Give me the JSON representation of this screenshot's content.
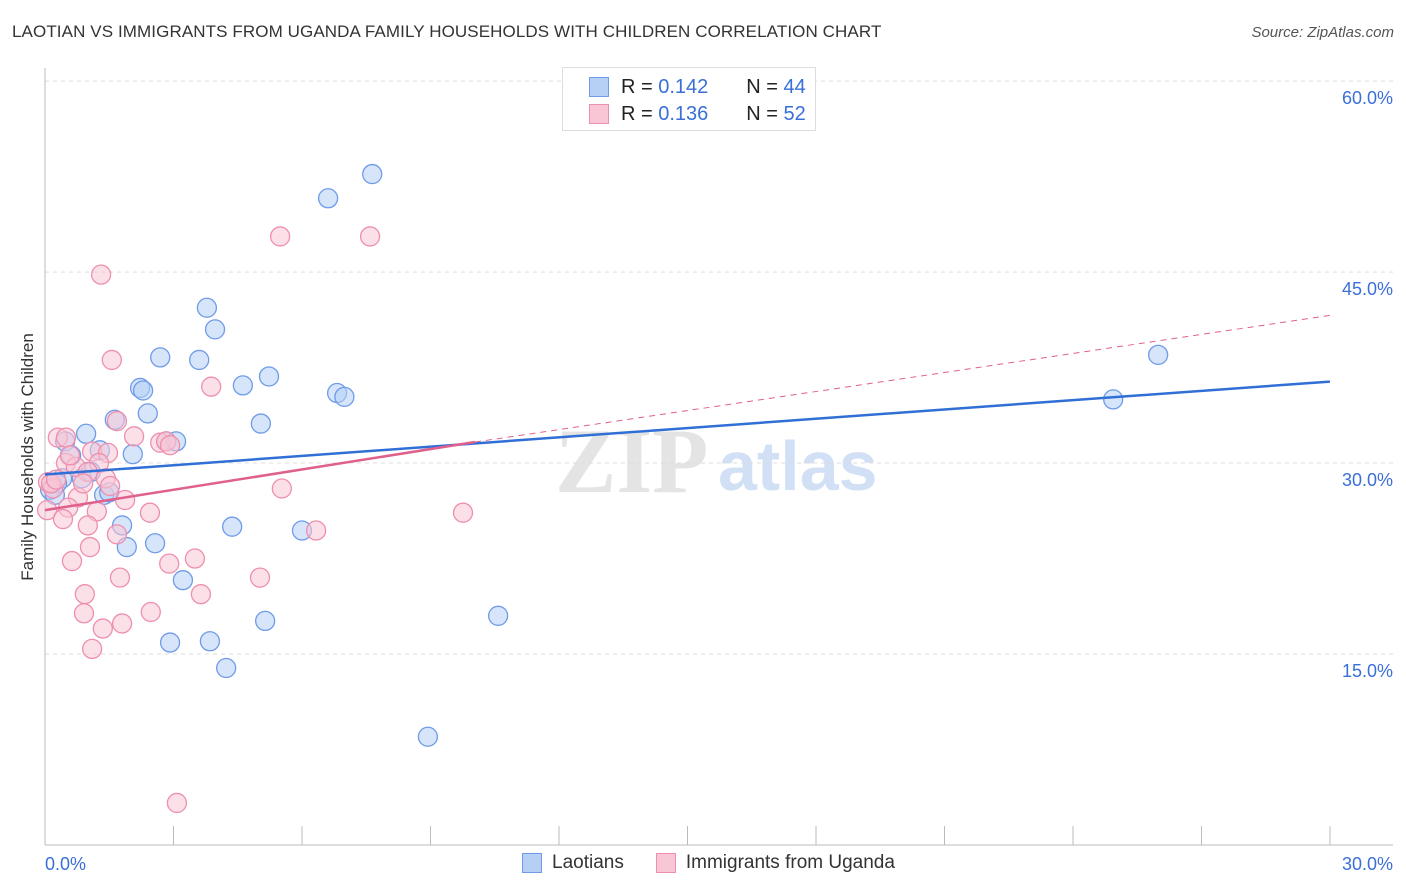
{
  "chart_data": {
    "type": "scatter",
    "title": "LAOTIAN VS IMMIGRANTS FROM UGANDA FAMILY HOUSEHOLDS WITH CHILDREN CORRELATION CHART",
    "source": "Source: ZipAtlas.com",
    "xlabel": "",
    "ylabel": "Family Households with Children",
    "xlim": [
      0,
      30
    ],
    "ylim": [
      0,
      62.5
    ],
    "x_tick_labels": [
      "0.0%",
      "30.0%"
    ],
    "y_ticks": [
      15,
      30,
      45,
      60
    ],
    "y_tick_labels": [
      "15.0%",
      "30.0%",
      "45.0%",
      "60.0%"
    ],
    "grid": true,
    "legend_placement": "top-center",
    "watermark": "ZIPatlas",
    "series": [
      {
        "name": "Laotians",
        "color": "#6f9be8",
        "fill": "#b5cff5",
        "line_color": "#2f6fd6",
        "R": "0.142",
        "N": "44",
        "trend": [
          [
            0,
            29.1
          ],
          [
            30,
            36.4
          ]
        ],
        "points": [
          [
            7.64,
            52.7
          ],
          [
            6.61,
            50.8
          ],
          [
            3.78,
            42.2
          ],
          [
            3.97,
            40.5
          ],
          [
            2.69,
            38.3
          ],
          [
            3.6,
            38.1
          ],
          [
            25.99,
            38.5
          ],
          [
            2.22,
            35.9
          ],
          [
            2.29,
            35.7
          ],
          [
            4.62,
            36.1
          ],
          [
            5.23,
            36.8
          ],
          [
            6.82,
            35.5
          ],
          [
            6.99,
            35.2
          ],
          [
            24.94,
            35.0
          ],
          [
            1.63,
            33.4
          ],
          [
            2.4,
            33.9
          ],
          [
            5.04,
            33.1
          ],
          [
            0.47,
            31.7
          ],
          [
            0.96,
            32.3
          ],
          [
            2.83,
            31.7
          ],
          [
            3.06,
            31.7
          ],
          [
            0.61,
            30.6
          ],
          [
            1.28,
            31.0
          ],
          [
            2.05,
            30.7
          ],
          [
            0.4,
            28.8
          ],
          [
            0.86,
            28.8
          ],
          [
            1.07,
            29.3
          ],
          [
            0.28,
            28.4
          ],
          [
            0.12,
            27.9
          ],
          [
            0.23,
            27.5
          ],
          [
            1.38,
            27.5
          ],
          [
            1.5,
            27.7
          ],
          [
            1.8,
            25.1
          ],
          [
            4.37,
            25.0
          ],
          [
            6.0,
            24.7
          ],
          [
            2.57,
            23.7
          ],
          [
            1.91,
            23.4
          ],
          [
            3.22,
            20.8
          ],
          [
            5.14,
            17.6
          ],
          [
            10.58,
            18.0
          ],
          [
            2.92,
            15.9
          ],
          [
            3.85,
            16.0
          ],
          [
            4.23,
            13.9
          ],
          [
            8.94,
            8.5
          ]
        ]
      },
      {
        "name": "Immigrants from Uganda",
        "color": "#ee8fae",
        "fill": "#f9c6d6",
        "line_color": "#e0608c",
        "R": "0.136",
        "N": "52",
        "trend": [
          [
            0,
            26.3
          ],
          [
            10.04,
            31.65
          ]
        ],
        "trend_dashed": [
          [
            10.04,
            31.65
          ],
          [
            30,
            41.6
          ]
        ],
        "points": [
          [
            5.49,
            47.8
          ],
          [
            7.59,
            47.8
          ],
          [
            1.31,
            44.8
          ],
          [
            1.56,
            38.1
          ],
          [
            3.88,
            36.0
          ],
          [
            1.68,
            33.3
          ],
          [
            2.08,
            32.1
          ],
          [
            0.3,
            32.0
          ],
          [
            0.49,
            32.0
          ],
          [
            2.69,
            31.6
          ],
          [
            2.83,
            31.7
          ],
          [
            1.1,
            30.9
          ],
          [
            1.47,
            30.8
          ],
          [
            0.49,
            30.0
          ],
          [
            0.72,
            29.7
          ],
          [
            1.26,
            30.0
          ],
          [
            1.0,
            29.3
          ],
          [
            1.42,
            28.8
          ],
          [
            1.52,
            28.2
          ],
          [
            0.07,
            28.5
          ],
          [
            0.19,
            28.0
          ],
          [
            0.77,
            27.3
          ],
          [
            0.54,
            26.5
          ],
          [
            1.21,
            26.2
          ],
          [
            2.45,
            26.1
          ],
          [
            5.53,
            28.0
          ],
          [
            9.76,
            26.1
          ],
          [
            0.05,
            26.3
          ],
          [
            0.42,
            25.6
          ],
          [
            1.0,
            25.1
          ],
          [
            1.68,
            24.4
          ],
          [
            6.33,
            24.7
          ],
          [
            1.05,
            23.4
          ],
          [
            0.63,
            22.3
          ],
          [
            2.9,
            22.1
          ],
          [
            3.5,
            22.5
          ],
          [
            1.75,
            21.0
          ],
          [
            5.02,
            21.0
          ],
          [
            0.93,
            19.7
          ],
          [
            3.64,
            19.7
          ],
          [
            0.91,
            18.2
          ],
          [
            2.47,
            18.3
          ],
          [
            1.8,
            17.4
          ],
          [
            1.35,
            17.0
          ],
          [
            1.1,
            15.4
          ],
          [
            3.08,
            3.3
          ],
          [
            0.14,
            28.4
          ],
          [
            0.26,
            28.7
          ],
          [
            0.58,
            30.6
          ],
          [
            0.89,
            28.4
          ],
          [
            1.87,
            27.1
          ],
          [
            2.92,
            31.4
          ]
        ]
      }
    ]
  },
  "legend": {
    "r_label": "R =",
    "n_label": "N ="
  }
}
